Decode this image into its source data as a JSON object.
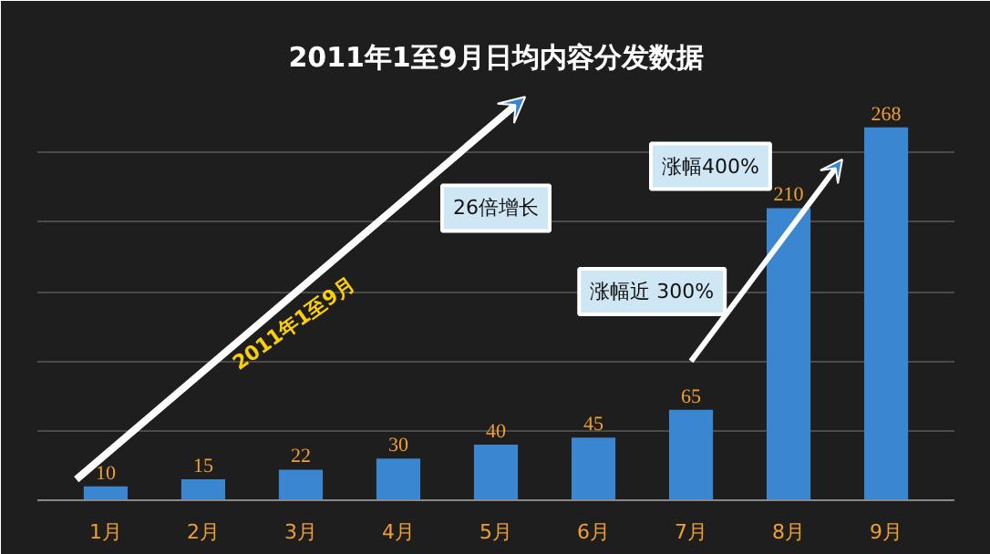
{
  "chart_data": {
    "type": "bar",
    "title": "2011年1至9月日均内容分发数据",
    "categories": [
      "1月",
      "2月",
      "3月",
      "4月",
      "5月",
      "6月",
      "7月",
      "8月",
      "9月"
    ],
    "values": [
      10,
      15,
      22,
      30,
      40,
      45,
      65,
      210,
      268
    ],
    "color": "#3a86d0",
    "data_labels": true,
    "ylim": [
      0,
      300
    ],
    "yticks": [
      {
        "value": 0,
        "label": null
      },
      {
        "value": 50,
        "label": null
      },
      {
        "value": 100,
        "label": null
      },
      {
        "value": 150,
        "label": null
      },
      {
        "value": 200,
        "label": null
      },
      {
        "value": 250,
        "label": null
      },
      {
        "value": 300,
        "label": null
      }
    ],
    "tick_labels": "x",
    "grid": "y",
    "annotations": [
      "2011年1至9月",
      "26倍增长",
      "涨幅近 300%",
      "涨幅400%"
    ]
  }
}
